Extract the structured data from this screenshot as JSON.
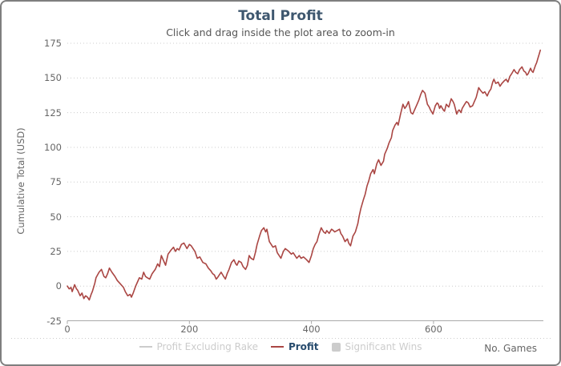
{
  "frame": {
    "border_color": "#7F7F7F",
    "background": "#FFFFFF"
  },
  "header": {
    "title": "Total Profit",
    "subtitle": "Click and drag inside the plot area to zoom-in",
    "title_color": "#3E576F",
    "subtitle_color": "#555555"
  },
  "legend": {
    "items": [
      {
        "label": "Profit Excluding Rake",
        "marker": "line",
        "marker_color": "#CCCCCC",
        "label_color": "#CCCCCC",
        "enabled": false
      },
      {
        "label": "Profit",
        "marker": "line",
        "marker_color": "#AA4643",
        "label_color": "#274B6D",
        "enabled": true
      },
      {
        "label": "Significant Wins",
        "marker": "square",
        "marker_color": "#CCCCCC",
        "label_color": "#CCCCCC",
        "enabled": false
      }
    ]
  },
  "axes": {
    "x": {
      "title": "No. Games",
      "ticks": [
        0,
        200,
        400,
        600
      ],
      "min": 0,
      "max": 780,
      "label_color": "#666666",
      "line_color": "#AAAAAA"
    },
    "y": {
      "title": "Cumulative Total (USD)",
      "ticks": [
        -25,
        0,
        25,
        50,
        75,
        100,
        125,
        150,
        175
      ],
      "min": -25,
      "max": 175,
      "label_color": "#666666",
      "grid_color": "#CCCCCC"
    }
  },
  "chart_data": {
    "type": "line",
    "title": "Total Profit",
    "subtitle": "Click and drag inside the plot area to zoom-in",
    "xlabel": "No. Games",
    "ylabel": "Cumulative Total (USD)",
    "xlim": [
      0,
      780
    ],
    "ylim": [
      -25,
      175
    ],
    "grid": "horizontal-dotted",
    "legend_position": "bottom-center",
    "series": [
      {
        "name": "Profit Excluding Rake",
        "visible": false,
        "color": "#CCCCCC",
        "points": []
      },
      {
        "name": "Profit",
        "visible": true,
        "color": "#AA4643",
        "points": [
          [
            0,
            0
          ],
          [
            3,
            -2
          ],
          [
            6,
            -1
          ],
          [
            8,
            -4
          ],
          [
            12,
            1
          ],
          [
            15,
            -2
          ],
          [
            17,
            -3
          ],
          [
            21,
            -7
          ],
          [
            24,
            -5
          ],
          [
            27,
            -9
          ],
          [
            30,
            -7
          ],
          [
            33,
            -8
          ],
          [
            36,
            -10
          ],
          [
            39,
            -6
          ],
          [
            41,
            -4
          ],
          [
            45,
            2
          ],
          [
            47,
            6
          ],
          [
            52,
            10
          ],
          [
            56,
            12
          ],
          [
            60,
            7
          ],
          [
            63,
            6
          ],
          [
            66,
            9
          ],
          [
            69,
            13
          ],
          [
            73,
            10
          ],
          [
            78,
            7
          ],
          [
            82,
            4
          ],
          [
            86,
            2
          ],
          [
            92,
            -1
          ],
          [
            95,
            -4
          ],
          [
            99,
            -7
          ],
          [
            103,
            -6
          ],
          [
            105,
            -8
          ],
          [
            108,
            -5
          ],
          [
            112,
            0
          ],
          [
            115,
            3
          ],
          [
            118,
            6
          ],
          [
            122,
            5
          ],
          [
            125,
            10
          ],
          [
            128,
            7
          ],
          [
            131,
            6
          ],
          [
            135,
            5
          ],
          [
            139,
            9
          ],
          [
            144,
            12
          ],
          [
            148,
            16
          ],
          [
            151,
            14
          ],
          [
            154,
            22
          ],
          [
            158,
            18
          ],
          [
            161,
            15
          ],
          [
            165,
            23
          ],
          [
            170,
            26
          ],
          [
            174,
            28
          ],
          [
            177,
            25
          ],
          [
            180,
            27
          ],
          [
            183,
            26
          ],
          [
            187,
            30
          ],
          [
            191,
            31
          ],
          [
            196,
            27
          ],
          [
            200,
            30
          ],
          [
            203,
            29
          ],
          [
            209,
            25
          ],
          [
            213,
            20
          ],
          [
            217,
            21
          ],
          [
            222,
            17
          ],
          [
            227,
            16
          ],
          [
            231,
            13
          ],
          [
            235,
            11
          ],
          [
            238,
            9
          ],
          [
            241,
            8
          ],
          [
            244,
            5
          ],
          [
            246,
            6
          ],
          [
            249,
            8
          ],
          [
            252,
            10
          ],
          [
            256,
            7
          ],
          [
            259,
            5
          ],
          [
            262,
            9
          ],
          [
            265,
            12
          ],
          [
            269,
            17
          ],
          [
            273,
            19
          ],
          [
            276,
            16
          ],
          [
            278,
            15
          ],
          [
            281,
            18
          ],
          [
            285,
            17
          ],
          [
            288,
            14
          ],
          [
            292,
            12
          ],
          [
            295,
            15
          ],
          [
            298,
            22
          ],
          [
            301,
            20
          ],
          [
            305,
            19
          ],
          [
            308,
            24
          ],
          [
            311,
            30
          ],
          [
            315,
            36
          ],
          [
            318,
            40
          ],
          [
            322,
            42
          ],
          [
            325,
            39
          ],
          [
            327,
            41
          ],
          [
            331,
            32
          ],
          [
            334,
            30
          ],
          [
            337,
            28
          ],
          [
            341,
            29
          ],
          [
            344,
            24
          ],
          [
            347,
            22
          ],
          [
            350,
            20
          ],
          [
            354,
            25
          ],
          [
            357,
            27
          ],
          [
            360,
            26
          ],
          [
            363,
            25
          ],
          [
            367,
            23
          ],
          [
            370,
            24
          ],
          [
            373,
            22
          ],
          [
            376,
            20
          ],
          [
            380,
            22
          ],
          [
            383,
            20
          ],
          [
            387,
            21
          ],
          [
            392,
            19
          ],
          [
            396,
            17
          ],
          [
            400,
            22
          ],
          [
            403,
            27
          ],
          [
            406,
            30
          ],
          [
            409,
            32
          ],
          [
            412,
            37
          ],
          [
            416,
            42
          ],
          [
            420,
            39
          ],
          [
            423,
            38
          ],
          [
            425,
            40
          ],
          [
            429,
            38
          ],
          [
            433,
            41
          ],
          [
            436,
            40
          ],
          [
            438,
            39
          ],
          [
            442,
            40
          ],
          [
            446,
            41
          ],
          [
            448,
            38
          ],
          [
            451,
            36
          ],
          [
            455,
            32
          ],
          [
            459,
            34
          ],
          [
            461,
            31
          ],
          [
            464,
            29
          ],
          [
            468,
            36
          ],
          [
            472,
            39
          ],
          [
            476,
            45
          ],
          [
            478,
            50
          ],
          [
            481,
            56
          ],
          [
            485,
            62
          ],
          [
            488,
            66
          ],
          [
            491,
            72
          ],
          [
            494,
            76
          ],
          [
            497,
            81
          ],
          [
            501,
            84
          ],
          [
            503,
            81
          ],
          [
            507,
            88
          ],
          [
            510,
            91
          ],
          [
            512,
            89
          ],
          [
            514,
            87
          ],
          [
            518,
            90
          ],
          [
            520,
            95
          ],
          [
            524,
            99
          ],
          [
            527,
            103
          ],
          [
            531,
            107
          ],
          [
            533,
            112
          ],
          [
            537,
            116
          ],
          [
            540,
            118
          ],
          [
            542,
            116
          ],
          [
            546,
            124
          ],
          [
            550,
            131
          ],
          [
            553,
            128
          ],
          [
            556,
            130
          ],
          [
            559,
            133
          ],
          [
            563,
            125
          ],
          [
            566,
            124
          ],
          [
            569,
            127
          ],
          [
            573,
            131
          ],
          [
            576,
            134
          ],
          [
            579,
            138
          ],
          [
            582,
            141
          ],
          [
            586,
            139
          ],
          [
            590,
            131
          ],
          [
            593,
            129
          ],
          [
            595,
            127
          ],
          [
            599,
            124
          ],
          [
            601,
            127
          ],
          [
            603,
            130
          ],
          [
            606,
            132
          ],
          [
            608,
            131
          ],
          [
            610,
            128
          ],
          [
            612,
            130
          ],
          [
            616,
            127
          ],
          [
            618,
            126
          ],
          [
            621,
            131
          ],
          [
            625,
            129
          ],
          [
            629,
            135
          ],
          [
            632,
            133
          ],
          [
            634,
            131
          ],
          [
            638,
            124
          ],
          [
            640,
            126
          ],
          [
            642,
            127
          ],
          [
            645,
            125
          ],
          [
            647,
            128
          ],
          [
            651,
            131
          ],
          [
            654,
            133
          ],
          [
            657,
            132
          ],
          [
            660,
            129
          ],
          [
            664,
            130
          ],
          [
            667,
            133
          ],
          [
            670,
            136
          ],
          [
            674,
            143
          ],
          [
            677,
            141
          ],
          [
            681,
            139
          ],
          [
            684,
            140
          ],
          [
            688,
            137
          ],
          [
            691,
            140
          ],
          [
            694,
            142
          ],
          [
            697,
            147
          ],
          [
            699,
            149
          ],
          [
            702,
            146
          ],
          [
            706,
            147
          ],
          [
            709,
            144
          ],
          [
            712,
            146
          ],
          [
            716,
            148
          ],
          [
            719,
            149
          ],
          [
            722,
            147
          ],
          [
            725,
            151
          ],
          [
            728,
            153
          ],
          [
            732,
            156
          ],
          [
            735,
            154
          ],
          [
            738,
            153
          ],
          [
            741,
            156
          ],
          [
            745,
            158
          ],
          [
            748,
            155
          ],
          [
            751,
            154
          ],
          [
            753,
            152
          ],
          [
            755,
            153
          ],
          [
            759,
            157
          ],
          [
            761,
            155
          ],
          [
            763,
            154
          ],
          [
            767,
            159
          ],
          [
            769,
            161
          ],
          [
            771,
            164
          ],
          [
            773,
            167
          ],
          [
            775,
            170
          ]
        ]
      },
      {
        "name": "Significant Wins",
        "visible": false,
        "color": "#CCCCCC",
        "points": []
      }
    ]
  }
}
